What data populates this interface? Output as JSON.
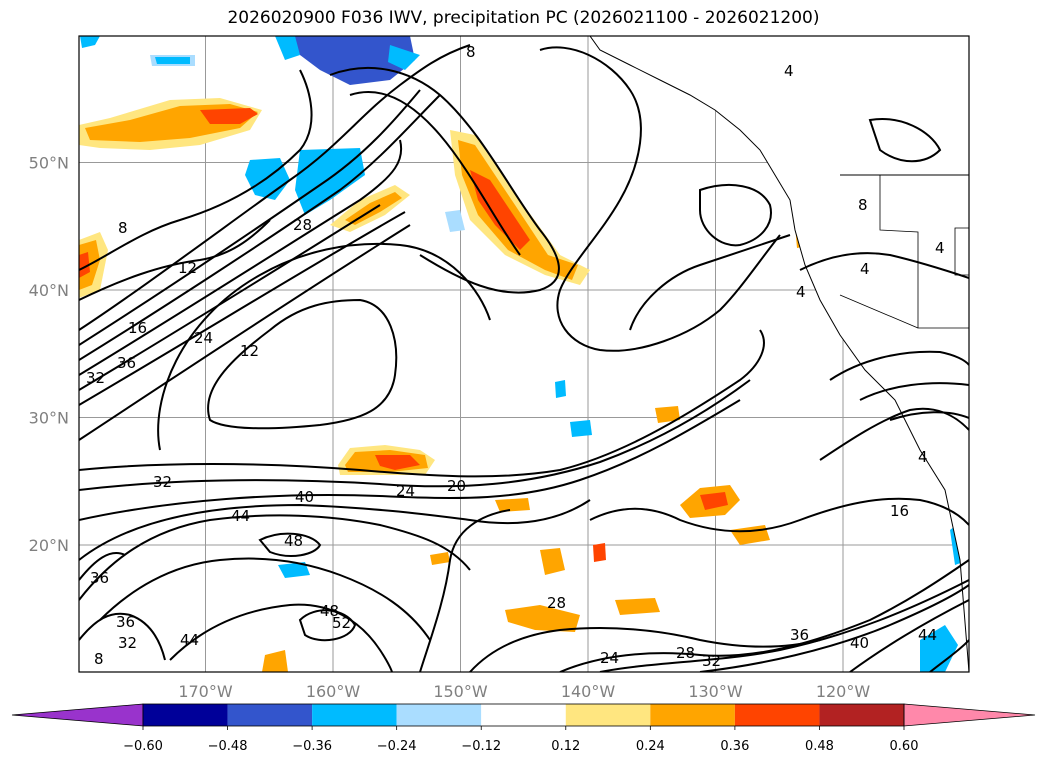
{
  "title": "2026020900 F036 IWV, precipitation PC (2026021100 - 2026021200)",
  "latitudes": [
    {
      "label": "50°N",
      "value": 50
    },
    {
      "label": "40°N",
      "value": 40
    },
    {
      "label": "30°N",
      "value": 30
    },
    {
      "label": "20°N",
      "value": 20
    }
  ],
  "longitudes": [
    {
      "label": "170°W",
      "value": -170
    },
    {
      "label": "160°W",
      "value": -160
    },
    {
      "label": "150°W",
      "value": -150
    },
    {
      "label": "140°W",
      "value": -140
    },
    {
      "label": "130°W",
      "value": -130
    },
    {
      "label": "120°W",
      "value": -120
    }
  ],
  "colorbar": {
    "ticks": [
      "−0.60",
      "−0.48",
      "−0.36",
      "−0.24",
      "−0.12",
      "0.12",
      "0.24",
      "0.36",
      "0.48",
      "0.60"
    ],
    "colors": {
      "under": "#9933cc",
      "bins": [
        "#000099",
        "#3355cc",
        "#00bbff",
        "#aaddff",
        "#ffffff",
        "#ffe680",
        "#ffa500",
        "#ff4400",
        "#b22222"
      ],
      "over": "#ff88aa"
    }
  },
  "contour_labels": [
    "8",
    "12",
    "16",
    "24",
    "28",
    "36",
    "32",
    "12",
    "4",
    "8",
    "4",
    "4",
    "4",
    "4",
    "8",
    "16",
    "20",
    "24",
    "40",
    "32",
    "44",
    "48",
    "36",
    "48",
    "52",
    "44",
    "36",
    "32",
    "8",
    "28",
    "24",
    "28",
    "32",
    "36",
    "40",
    "44"
  ],
  "colors": {
    "land_fill": "#ffffff",
    "contour": "#000000",
    "grid": "#999999",
    "axis_label": "#808080"
  }
}
